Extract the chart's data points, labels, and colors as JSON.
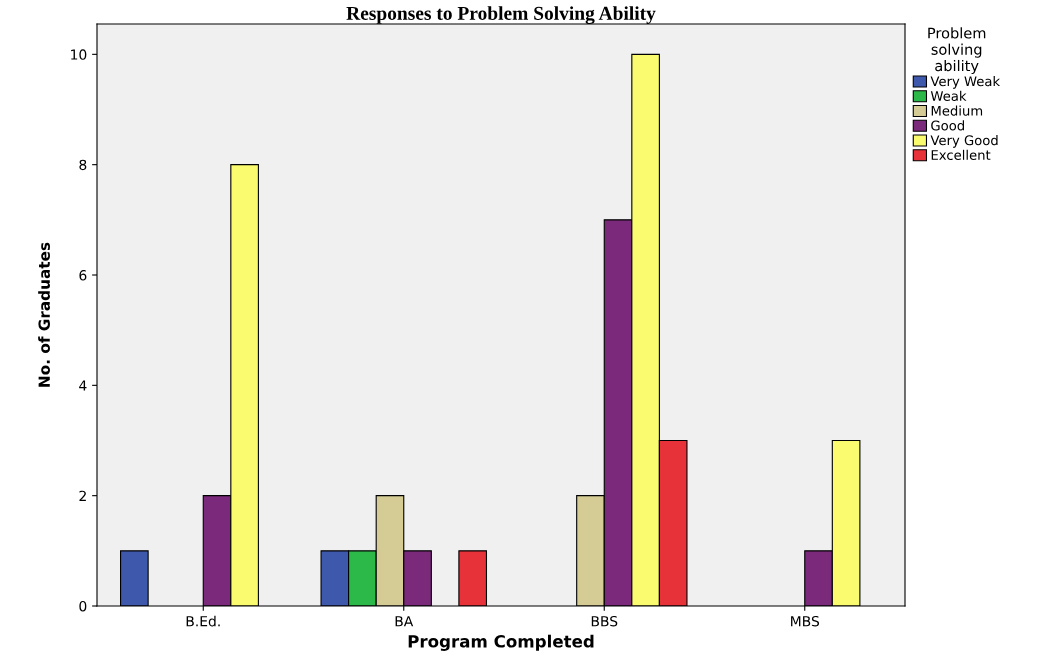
{
  "chart_data": {
    "type": "bar",
    "title": "Responses to Problem Solving Ability",
    "xlabel": "Program Completed",
    "ylabel": "No. of Graduates",
    "legend_title": "Problem\nsolving\nability",
    "categories": [
      "B.Ed.",
      "BA",
      "BBS",
      "MBS"
    ],
    "series": [
      {
        "name": "Very Weak",
        "color": "#3e58ac",
        "values": [
          1,
          1,
          null,
          null
        ]
      },
      {
        "name": "Weak",
        "color": "#2db84a",
        "values": [
          null,
          1,
          null,
          null
        ]
      },
      {
        "name": "Medium",
        "color": "#d4cc94",
        "values": [
          null,
          2,
          2,
          null
        ]
      },
      {
        "name": "Good",
        "color": "#7b2a7b",
        "values": [
          2,
          1,
          7,
          1
        ]
      },
      {
        "name": "Very Good",
        "color": "#fbfb70",
        "values": [
          8,
          null,
          10,
          3
        ]
      },
      {
        "name": "Excellent",
        "color": "#e8323a",
        "values": [
          null,
          1,
          3,
          null
        ]
      }
    ],
    "ylim": [
      0,
      10.55
    ],
    "yticks": [
      0,
      2,
      4,
      6,
      8,
      10
    ],
    "grid": false,
    "legend": "top right"
  }
}
